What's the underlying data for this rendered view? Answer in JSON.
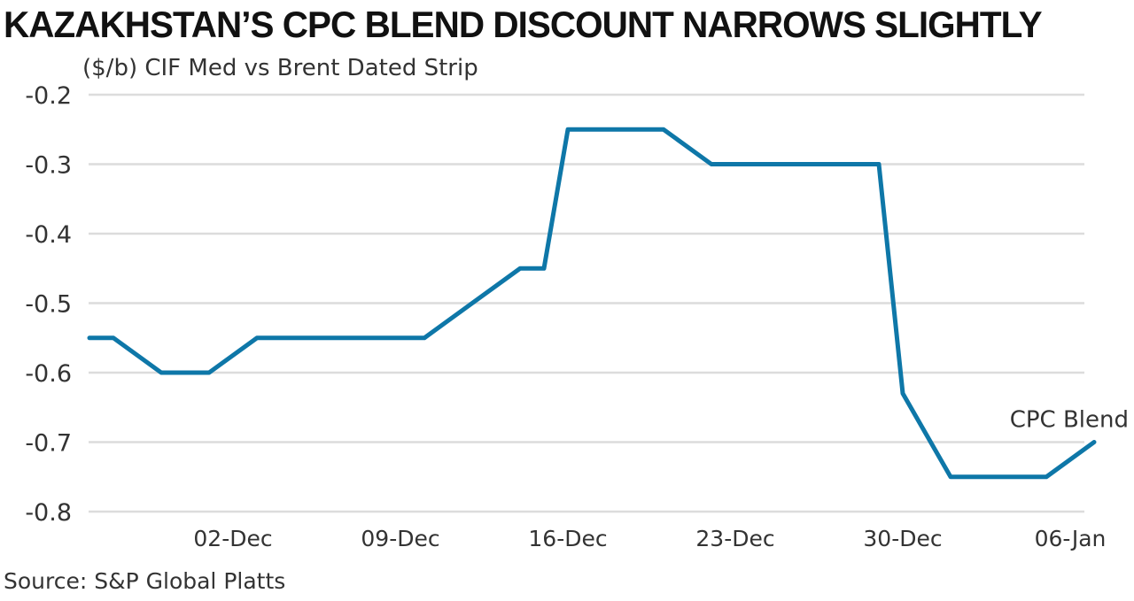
{
  "title": "KAZAKHSTAN’S CPC BLEND DISCOUNT NARROWS SLIGHTLY",
  "unit_label": "($/b) CIF Med vs Brent Dated Strip",
  "source": "Source: S&P Global Platts",
  "colors": {
    "line": "#0e77a8",
    "grid": "#dcdcdc",
    "text": "#333333"
  },
  "chart_data": {
    "type": "line",
    "title": "KAZAKHSTAN’S CPC BLEND DISCOUNT NARROWS SLIGHTLY",
    "ylabel": "($/b) CIF Med vs Brent Dated Strip",
    "ylim": [
      -0.8,
      -0.2
    ],
    "yticks": [
      "-0.2",
      "-0.3",
      "-0.4",
      "-0.5",
      "-0.6",
      "-0.7",
      "-0.8"
    ],
    "xticks": [
      "02-Dec",
      "09-Dec",
      "16-Dec",
      "23-Dec",
      "30-Dec",
      "06-Jan"
    ],
    "grid": true,
    "series": [
      {
        "name": "CPC Blend",
        "points": [
          {
            "x": "26-Nov",
            "y": -0.55
          },
          {
            "x": "27-Nov",
            "y": -0.55
          },
          {
            "x": "29-Nov",
            "y": -0.6
          },
          {
            "x": "01-Dec",
            "y": -0.6
          },
          {
            "x": "03-Dec",
            "y": -0.55
          },
          {
            "x": "06-Dec",
            "y": -0.55
          },
          {
            "x": "08-Dec",
            "y": -0.55
          },
          {
            "x": "10-Dec",
            "y": -0.55
          },
          {
            "x": "12-Dec",
            "y": -0.5
          },
          {
            "x": "14-Dec",
            "y": -0.45
          },
          {
            "x": "15-Dec",
            "y": -0.45
          },
          {
            "x": "16-Dec",
            "y": -0.25
          },
          {
            "x": "18-Dec",
            "y": -0.25
          },
          {
            "x": "20-Dec",
            "y": -0.25
          },
          {
            "x": "22-Dec",
            "y": -0.3
          },
          {
            "x": "24-Dec",
            "y": -0.3
          },
          {
            "x": "27-Dec",
            "y": -0.3
          },
          {
            "x": "29-Dec",
            "y": -0.3
          },
          {
            "x": "30-Dec",
            "y": -0.63
          },
          {
            "x": "01-Jan",
            "y": -0.75
          },
          {
            "x": "03-Jan",
            "y": -0.75
          },
          {
            "x": "05-Jan",
            "y": -0.75
          },
          {
            "x": "07-Jan",
            "y": -0.7
          }
        ]
      }
    ]
  }
}
